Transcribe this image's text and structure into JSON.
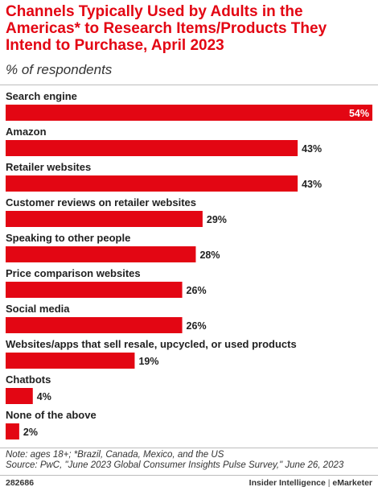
{
  "header": {
    "title": "Channels Typically Used by Adults in the Americas* to Research Items/Products They Intend to Purchase, April 2023",
    "subtitle": "% of respondents"
  },
  "chart_data": {
    "type": "bar",
    "orientation": "horizontal",
    "categories": [
      "Search engine",
      "Amazon",
      "Retailer websites",
      "Customer reviews on retailer websites",
      "Speaking to other people",
      "Price comparison websites",
      "Social media",
      "Websites/apps that sell resale, upcycled, or used products",
      "Chatbots",
      "None of the above"
    ],
    "values": [
      54,
      43,
      43,
      29,
      28,
      26,
      26,
      19,
      4,
      2
    ],
    "value_labels": [
      "54%",
      "43%",
      "43%",
      "29%",
      "28%",
      "26%",
      "26%",
      "19%",
      "4%",
      "2%"
    ],
    "unit": "%",
    "bar_color": "#e30613",
    "xlim": [
      0,
      54
    ],
    "grid": false,
    "legend": "none"
  },
  "footer": {
    "note": "Note: ages 18+; *Brazil, Canada, Mexico, and the US",
    "source": "Source: PwC, \"June 2023 Global Consumer Insights Pulse Survey,\" June 26, 2023",
    "chart_id": "282686",
    "brand_left": "Insider Intelligence",
    "brand_sep": "|",
    "brand_right": "eMarketer"
  }
}
